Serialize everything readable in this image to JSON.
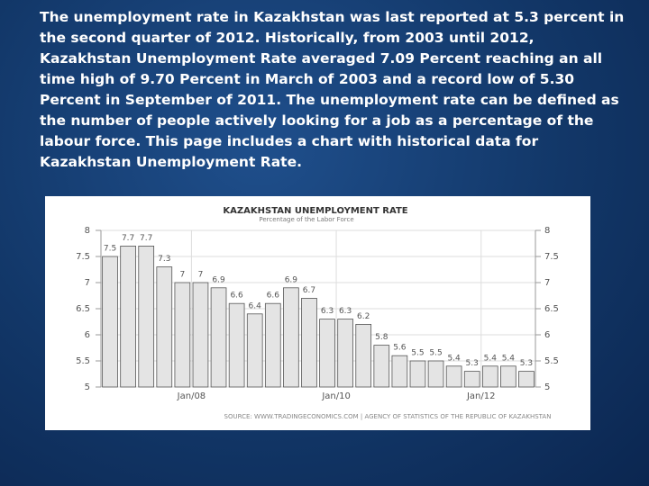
{
  "text": {
    "lines": [
      "The unemployment rate in Kazakhstan was last reported at 5.3 percent in",
      "the second quarter of 2012. Historically, from 2003 until 2012,",
      "Kazakhstan Unemployment Rate averaged 7.09 Percent reaching an all",
      "time high of 9.70 Percent in March of 2003 and a record low of 5.30",
      "Percent in September of 2011. The unemployment rate can be defined as",
      "the number of people actively looking for a job as a percentage of the",
      "labour force. This page includes a chart with historical data for",
      "Kazakhstan Unemployment Rate."
    ]
  },
  "chart_data": {
    "type": "bar",
    "title": "KAZAKHSTAN UNEMPLOYMENT RATE",
    "subtitle": "Percentage of the Labor Force",
    "source": "SOURCE: WWW.TRADINGECONOMICS.COM | AGENCY OF STATISTICS OF THE REPUBLIC OF KAZAKHSTAN",
    "categories": [
      null,
      null,
      null,
      null,
      null,
      "Jan/08",
      null,
      null,
      null,
      null,
      null,
      null,
      null,
      "Jan/10",
      null,
      null,
      null,
      null,
      null,
      null,
      null,
      "Jan/12",
      null,
      null
    ],
    "values": [
      7.5,
      7.7,
      7.7,
      7.3,
      7,
      7,
      6.9,
      6.6,
      6.4,
      6.6,
      6.9,
      6.7,
      6.3,
      6.3,
      6.2,
      5.8,
      5.6,
      5.5,
      5.5,
      5.4,
      5.3,
      5.4,
      5.4,
      5.3
    ],
    "color": "#e4e4e4",
    "ylim": [
      5,
      8
    ],
    "yticks": [
      5,
      5.5,
      6,
      6.5,
      7,
      7.5,
      8
    ],
    "grid": true
  }
}
